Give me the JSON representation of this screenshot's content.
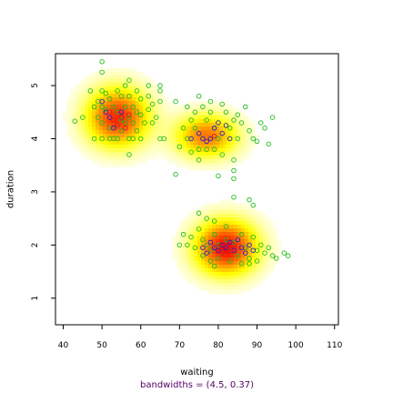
{
  "chart_data": {
    "type": "heatmap",
    "xlabel": "waiting",
    "ylabel": "duration",
    "subtitle": "bandwidths = (4.5, 0.37)",
    "xlim": [
      38,
      111
    ],
    "ylim": [
      0.5,
      5.6
    ],
    "x_ticks": [
      40,
      50,
      60,
      70,
      80,
      90,
      100,
      110
    ],
    "y_ticks": [
      1,
      2,
      3,
      4,
      5
    ],
    "density_clusters": [
      {
        "cx": 54,
        "cy": 4.4,
        "sx": 5.5,
        "sy": 0.38,
        "w": 0.9
      },
      {
        "cx": 77,
        "cy": 4.05,
        "sx": 5.5,
        "sy": 0.28,
        "w": 0.7
      },
      {
        "cx": 82,
        "cy": 1.95,
        "sx": 5.5,
        "sy": 0.35,
        "w": 1.0
      }
    ],
    "points_green": [
      [
        43,
        4.33
      ],
      [
        45,
        4.4
      ],
      [
        47,
        4.9
      ],
      [
        48,
        4.6
      ],
      [
        48,
        4.0
      ],
      [
        49,
        4.4
      ],
      [
        49,
        4.7
      ],
      [
        50,
        5.45
      ],
      [
        50,
        5.25
      ],
      [
        50,
        4.9
      ],
      [
        50,
        4.6
      ],
      [
        50,
        4.3
      ],
      [
        50,
        4.0
      ],
      [
        51,
        4.85
      ],
      [
        51,
        4.55
      ],
      [
        52,
        4.75
      ],
      [
        52,
        4.2
      ],
      [
        52,
        4.0
      ],
      [
        53,
        4.6
      ],
      [
        53,
        4.0
      ],
      [
        54,
        4.9
      ],
      [
        54,
        4.5
      ],
      [
        54,
        4.0
      ],
      [
        55,
        4.8
      ],
      [
        55,
        4.35
      ],
      [
        55,
        4.15
      ],
      [
        56,
        5.0
      ],
      [
        56,
        4.6
      ],
      [
        56,
        4.3
      ],
      [
        57,
        5.1
      ],
      [
        57,
        4.8
      ],
      [
        57,
        4.4
      ],
      [
        57,
        4.0
      ],
      [
        57,
        3.7
      ],
      [
        58,
        4.6
      ],
      [
        58,
        4.3
      ],
      [
        58,
        4.0
      ],
      [
        59,
        4.9
      ],
      [
        59,
        4.5
      ],
      [
        59,
        4.15
      ],
      [
        60,
        4.75
      ],
      [
        60,
        4.45
      ],
      [
        60,
        4.0
      ],
      [
        61,
        4.3
      ],
      [
        62,
        5.0
      ],
      [
        62,
        4.8
      ],
      [
        62,
        4.55
      ],
      [
        63,
        4.65
      ],
      [
        63,
        4.3
      ],
      [
        64,
        4.4
      ],
      [
        65,
        5.0
      ],
      [
        65,
        4.9
      ],
      [
        65,
        4.7
      ],
      [
        65,
        4.0
      ],
      [
        66,
        4.0
      ],
      [
        69,
        3.33
      ],
      [
        69,
        4.7
      ],
      [
        70,
        3.85
      ],
      [
        71,
        4.2
      ],
      [
        72,
        4.6
      ],
      [
        72,
        4.0
      ],
      [
        73,
        4.35
      ],
      [
        73,
        3.75
      ],
      [
        74,
        4.5
      ],
      [
        74,
        4.2
      ],
      [
        75,
        4.8
      ],
      [
        75,
        3.8
      ],
      [
        75,
        3.6
      ],
      [
        76,
        4.6
      ],
      [
        77,
        4.35
      ],
      [
        77,
        3.8
      ],
      [
        78,
        4.7
      ],
      [
        78,
        4.5
      ],
      [
        79,
        4.2
      ],
      [
        79,
        3.8
      ],
      [
        80,
        4.0
      ],
      [
        80,
        3.3
      ],
      [
        81,
        4.65
      ],
      [
        81,
        3.7
      ],
      [
        82,
        4.5
      ],
      [
        83,
        4.2
      ],
      [
        84,
        4.35
      ],
      [
        84,
        3.6
      ],
      [
        84,
        3.4
      ],
      [
        84,
        3.25
      ],
      [
        85,
        4.45
      ],
      [
        85,
        4.0
      ],
      [
        86,
        4.3
      ],
      [
        87,
        4.6
      ],
      [
        88,
        4.15
      ],
      [
        89,
        4.0
      ],
      [
        90,
        3.95
      ],
      [
        91,
        4.3
      ],
      [
        92,
        4.2
      ],
      [
        93,
        3.9
      ],
      [
        94,
        4.4
      ],
      [
        84,
        2.9
      ],
      [
        88,
        2.85
      ],
      [
        89,
        2.75
      ],
      [
        75,
        2.6
      ],
      [
        77,
        2.5
      ],
      [
        79,
        2.45
      ],
      [
        82,
        2.35
      ],
      [
        71,
        2.2
      ],
      [
        72,
        2.0
      ],
      [
        73,
        2.15
      ],
      [
        74,
        1.95
      ],
      [
        75,
        2.3
      ],
      [
        76,
        2.1
      ],
      [
        76,
        1.8
      ],
      [
        77,
        2.0
      ],
      [
        78,
        1.9
      ],
      [
        78,
        1.7
      ],
      [
        79,
        2.2
      ],
      [
        80,
        2.0
      ],
      [
        80,
        1.75
      ],
      [
        81,
        1.85
      ],
      [
        82,
        2.1
      ],
      [
        83,
        1.9
      ],
      [
        83,
        1.7
      ],
      [
        84,
        2.05
      ],
      [
        85,
        1.8
      ],
      [
        86,
        2.2
      ],
      [
        87,
        1.95
      ],
      [
        88,
        1.75
      ],
      [
        88,
        1.65
      ],
      [
        89,
        2.15
      ],
      [
        90,
        1.9
      ],
      [
        90,
        1.7
      ],
      [
        91,
        2.0
      ],
      [
        92,
        1.85
      ],
      [
        93,
        1.95
      ],
      [
        94,
        1.8
      ],
      [
        95,
        1.75
      ],
      [
        97,
        1.85
      ],
      [
        98,
        1.8
      ],
      [
        70,
        2.0
      ],
      [
        79,
        1.6
      ],
      [
        86,
        1.65
      ]
    ],
    "points_blue": [
      [
        50,
        4.7
      ],
      [
        51,
        4.5
      ],
      [
        52,
        4.4
      ],
      [
        53,
        4.2
      ],
      [
        55,
        4.5
      ],
      [
        73,
        4.0
      ],
      [
        75,
        4.1
      ],
      [
        76,
        4.0
      ],
      [
        77,
        3.95
      ],
      [
        78,
        4.0
      ],
      [
        79,
        4.2
      ],
      [
        80,
        4.3
      ],
      [
        81,
        4.1
      ],
      [
        82,
        4.25
      ],
      [
        83,
        4.0
      ],
      [
        76,
        1.95
      ],
      [
        77,
        1.85
      ],
      [
        78,
        2.05
      ],
      [
        79,
        1.95
      ],
      [
        80,
        1.9
      ],
      [
        81,
        2.0
      ],
      [
        82,
        1.95
      ],
      [
        83,
        2.05
      ],
      [
        84,
        1.9
      ],
      [
        85,
        2.1
      ],
      [
        86,
        1.95
      ],
      [
        87,
        1.85
      ],
      [
        88,
        2.0
      ],
      [
        89,
        1.9
      ]
    ],
    "points_red": [
      [
        52,
        4.5
      ],
      [
        53,
        4.35
      ],
      [
        54,
        4.25
      ],
      [
        55,
        4.4
      ],
      [
        56,
        4.2
      ],
      [
        57,
        4.45
      ],
      [
        79,
        4.05
      ],
      [
        80,
        1.95
      ],
      [
        81,
        1.85
      ],
      [
        82,
        2.0
      ],
      [
        83,
        1.9
      ],
      [
        84,
        2.0
      ]
    ],
    "colors": {
      "green_points": "#22bb22",
      "blue_points": "#2222cc",
      "red_points": "#cc2222",
      "subtitle_color": "#550066",
      "frame": "#000000"
    },
    "grid": false,
    "legend": "none"
  }
}
